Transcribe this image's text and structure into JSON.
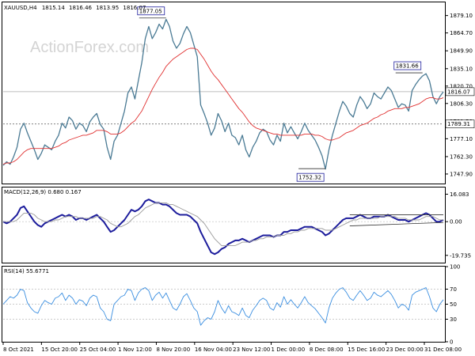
{
  "chart_data": [
    {
      "type": "line",
      "panel": "price",
      "title": "XAUUSD,H4",
      "ohlc": [
        "1815.14",
        "1816.46",
        "1813.95",
        "1816.07"
      ],
      "watermark": "ActionForex.com",
      "ylim": [
        1740,
        1890
      ],
      "yticks": [
        1747.9,
        1762.3,
        1777.1,
        1791.5,
        1806.3,
        1820.7,
        1835.1,
        1849.9,
        1864.7,
        1879.1
      ],
      "ytick_labels": [
        "1747.90",
        "1762.30",
        "1777.10",
        "1791.50",
        "1806.30",
        "1820.70",
        "1835.10",
        "1849.90",
        "1864.70",
        "1879.10"
      ],
      "series": [
        {
          "name": "",
          "color": "#4a7a94",
          "values": [
            1755,
            1758,
            1756,
            1762,
            1770,
            1785,
            1790,
            1782,
            1775,
            1768,
            1760,
            1765,
            1772,
            1770,
            1768,
            1775,
            1780,
            1790,
            1786,
            1795,
            1792,
            1785,
            1790,
            1788,
            1783,
            1791,
            1795,
            1798,
            1789,
            1785,
            1770,
            1760,
            1775,
            1780,
            1790,
            1800,
            1815,
            1820,
            1810,
            1825,
            1840,
            1860,
            1870,
            1860,
            1865,
            1872,
            1868,
            1876,
            1870,
            1858,
            1852,
            1856,
            1864,
            1870,
            1865,
            1855,
            1845,
            1805,
            1798,
            1790,
            1780,
            1786,
            1798,
            1792,
            1783,
            1790,
            1780,
            1778,
            1772,
            1780,
            1768,
            1762,
            1770,
            1775,
            1782,
            1785,
            1783,
            1776,
            1772,
            1780,
            1775,
            1790,
            1782,
            1787,
            1782,
            1777,
            1783,
            1790,
            1784,
            1780,
            1776,
            1770,
            1763,
            1752,
            1768,
            1780,
            1790,
            1800,
            1808,
            1804,
            1798,
            1795,
            1805,
            1812,
            1808,
            1802,
            1806,
            1815,
            1812,
            1810,
            1815,
            1820,
            1817,
            1810,
            1803,
            1806,
            1805,
            1800,
            1817,
            1822,
            1826,
            1829,
            1831,
            1825,
            1812,
            1806,
            1812,
            1816
          ]
        },
        {
          "name": "",
          "color": "#e03030",
          "values": [
            1756,
            1757,
            1757,
            1758,
            1760,
            1763,
            1766,
            1768,
            1769,
            1769,
            1769,
            1769,
            1769,
            1769,
            1769,
            1770,
            1771,
            1773,
            1774,
            1776,
            1777,
            1778,
            1779,
            1780,
            1780,
            1781,
            1782,
            1784,
            1784,
            1784,
            1783,
            1781,
            1781,
            1781,
            1782,
            1784,
            1787,
            1790,
            1792,
            1796,
            1800,
            1806,
            1812,
            1818,
            1823,
            1828,
            1832,
            1837,
            1840,
            1843,
            1845,
            1847,
            1849,
            1851,
            1852,
            1852,
            1851,
            1847,
            1843,
            1838,
            1833,
            1829,
            1826,
            1822,
            1818,
            1814,
            1810,
            1806,
            1802,
            1799,
            1795,
            1791,
            1788,
            1786,
            1785,
            1784,
            1783,
            1782,
            1781,
            1781,
            1780,
            1780,
            1780,
            1780,
            1780,
            1780,
            1780,
            1781,
            1781,
            1781,
            1780,
            1780,
            1779,
            1777,
            1776,
            1776,
            1777,
            1778,
            1780,
            1782,
            1783,
            1784,
            1786,
            1788,
            1789,
            1790,
            1792,
            1794,
            1795,
            1797,
            1798,
            1800,
            1801,
            1802,
            1802,
            1802,
            1803,
            1803,
            1804,
            1805,
            1806,
            1808,
            1810,
            1811,
            1811,
            1810,
            1810,
            1811
          ]
        }
      ],
      "annotations": [
        {
          "label": "1877.05",
          "value": 1877.05,
          "index": 47
        },
        {
          "label": "1831.66",
          "value": 1831.66,
          "index": 121
        },
        {
          "label": "1752.32",
          "value": 1752.32,
          "index": 93
        }
      ],
      "reference_lines": [
        {
          "label": "1816.07",
          "value": 1816.07,
          "style": "solid"
        },
        {
          "label": "1789.31",
          "value": 1789.31,
          "style": "dotted"
        }
      ]
    },
    {
      "type": "line",
      "panel": "macd",
      "title": "MACD(12,26,9) 0.680 0.167",
      "ylim": [
        -24,
        20
      ],
      "yticks": [
        16.083,
        0.0,
        -19.735
      ],
      "ytick_labels": [
        "16.083",
        "0.00",
        "-19.735"
      ],
      "series": [
        {
          "name": "",
          "color": "#1c1c9c",
          "values": [
            0,
            -1,
            0,
            2,
            4,
            8,
            9,
            6,
            3,
            0,
            -2,
            -3,
            -1,
            0,
            1,
            2,
            3,
            4,
            3,
            4,
            3,
            1,
            2,
            2,
            1,
            2,
            3,
            4,
            2,
            0,
            -3,
            -6,
            -5,
            -3,
            -1,
            1,
            4,
            7,
            6,
            7,
            9,
            12,
            13,
            12,
            11,
            11,
            10,
            10,
            9,
            7,
            5,
            4,
            4,
            4,
            3,
            1,
            -1,
            -6,
            -10,
            -14,
            -18,
            -19,
            -18,
            -16,
            -15,
            -13,
            -12,
            -11,
            -11,
            -10,
            -11,
            -12,
            -11,
            -10,
            -9,
            -8,
            -8,
            -8,
            -9,
            -8,
            -8,
            -6,
            -6,
            -5,
            -5,
            -5,
            -4,
            -3,
            -3,
            -3,
            -4,
            -5,
            -6,
            -8,
            -7,
            -5,
            -3,
            -1,
            1,
            2,
            2,
            2,
            3,
            4,
            3,
            2,
            2,
            3,
            3,
            3,
            3,
            4,
            3,
            2,
            1,
            1,
            1,
            0,
            1,
            2,
            3,
            4,
            5,
            4,
            2,
            0,
            0,
            1
          ]
        },
        {
          "name": "",
          "color": "#999999",
          "values": [
            0,
            0,
            0,
            0,
            1,
            3,
            5,
            5,
            5,
            4,
            2,
            1,
            0,
            0,
            0,
            1,
            1,
            2,
            3,
            3,
            3,
            3,
            2,
            2,
            2,
            2,
            2,
            3,
            3,
            2,
            1,
            -1,
            -2,
            -3,
            -3,
            -2,
            -1,
            1,
            3,
            4,
            6,
            8,
            9,
            10,
            11,
            11,
            11,
            11,
            10,
            10,
            9,
            8,
            7,
            6,
            5,
            4,
            3,
            1,
            -1,
            -4,
            -7,
            -10,
            -12,
            -14,
            -14,
            -14,
            -14,
            -14,
            -13,
            -12,
            -12,
            -12,
            -11,
            -11,
            -10,
            -10,
            -9,
            -9,
            -9,
            -8,
            -8,
            -8,
            -7,
            -7,
            -6,
            -6,
            -5,
            -5,
            -4,
            -4,
            -4,
            -4,
            -4,
            -5,
            -5,
            -5,
            -4,
            -3,
            -2,
            -1,
            0,
            1,
            1,
            2,
            2,
            2,
            2,
            2,
            2,
            3,
            3,
            3,
            3,
            3,
            2,
            2,
            2,
            1,
            1,
            1,
            1,
            2,
            3,
            3,
            3,
            2,
            1,
            1
          ]
        }
      ],
      "trend_lines": [
        {
          "from": [
            100,
            4
          ],
          "to": [
            127,
            4
          ]
        },
        {
          "from": [
            100,
            -2.5
          ],
          "to": [
            127,
            -0.5
          ]
        }
      ]
    },
    {
      "type": "line",
      "panel": "rsi",
      "title": "RSI(14) 55.6771",
      "ylim": [
        0,
        100
      ],
      "yticks": [
        100,
        70,
        50,
        30,
        0
      ],
      "ytick_labels": [
        "100",
        "70",
        "50",
        "30",
        "0"
      ],
      "series": [
        {
          "name": "",
          "color": "#3a8ee0",
          "values": [
            50,
            55,
            60,
            58,
            62,
            70,
            68,
            52,
            45,
            40,
            38,
            48,
            55,
            52,
            50,
            58,
            60,
            65,
            55,
            62,
            58,
            50,
            56,
            54,
            48,
            58,
            62,
            60,
            45,
            40,
            30,
            28,
            50,
            55,
            60,
            62,
            70,
            68,
            55,
            65,
            70,
            72,
            68,
            55,
            62,
            66,
            58,
            65,
            55,
            45,
            42,
            50,
            60,
            64,
            55,
            45,
            40,
            22,
            28,
            32,
            30,
            40,
            55,
            45,
            38,
            48,
            40,
            38,
            35,
            45,
            35,
            32,
            42,
            48,
            55,
            58,
            55,
            45,
            42,
            52,
            46,
            60,
            50,
            56,
            50,
            45,
            52,
            60,
            52,
            48,
            44,
            38,
            32,
            25,
            45,
            58,
            65,
            70,
            72,
            66,
            58,
            55,
            62,
            68,
            62,
            55,
            58,
            66,
            62,
            60,
            64,
            68,
            63,
            55,
            45,
            50,
            48,
            42,
            62,
            66,
            68,
            70,
            72,
            60,
            45,
            40,
            50,
            56
          ]
        }
      ]
    }
  ],
  "x_axis": {
    "labels": [
      "8 Oct 2021",
      "15 Oct 20:00",
      "25 Oct 04:00",
      "1 Nov 12:00",
      "8 Nov 20:00",
      "16 Nov 04:00",
      "23 Nov 12:00",
      "1 Dec 00:00",
      "8 Dec 08:00",
      "15 Dec 16:00",
      "23 Dec 00:00",
      "31 Dec 08:00"
    ]
  }
}
